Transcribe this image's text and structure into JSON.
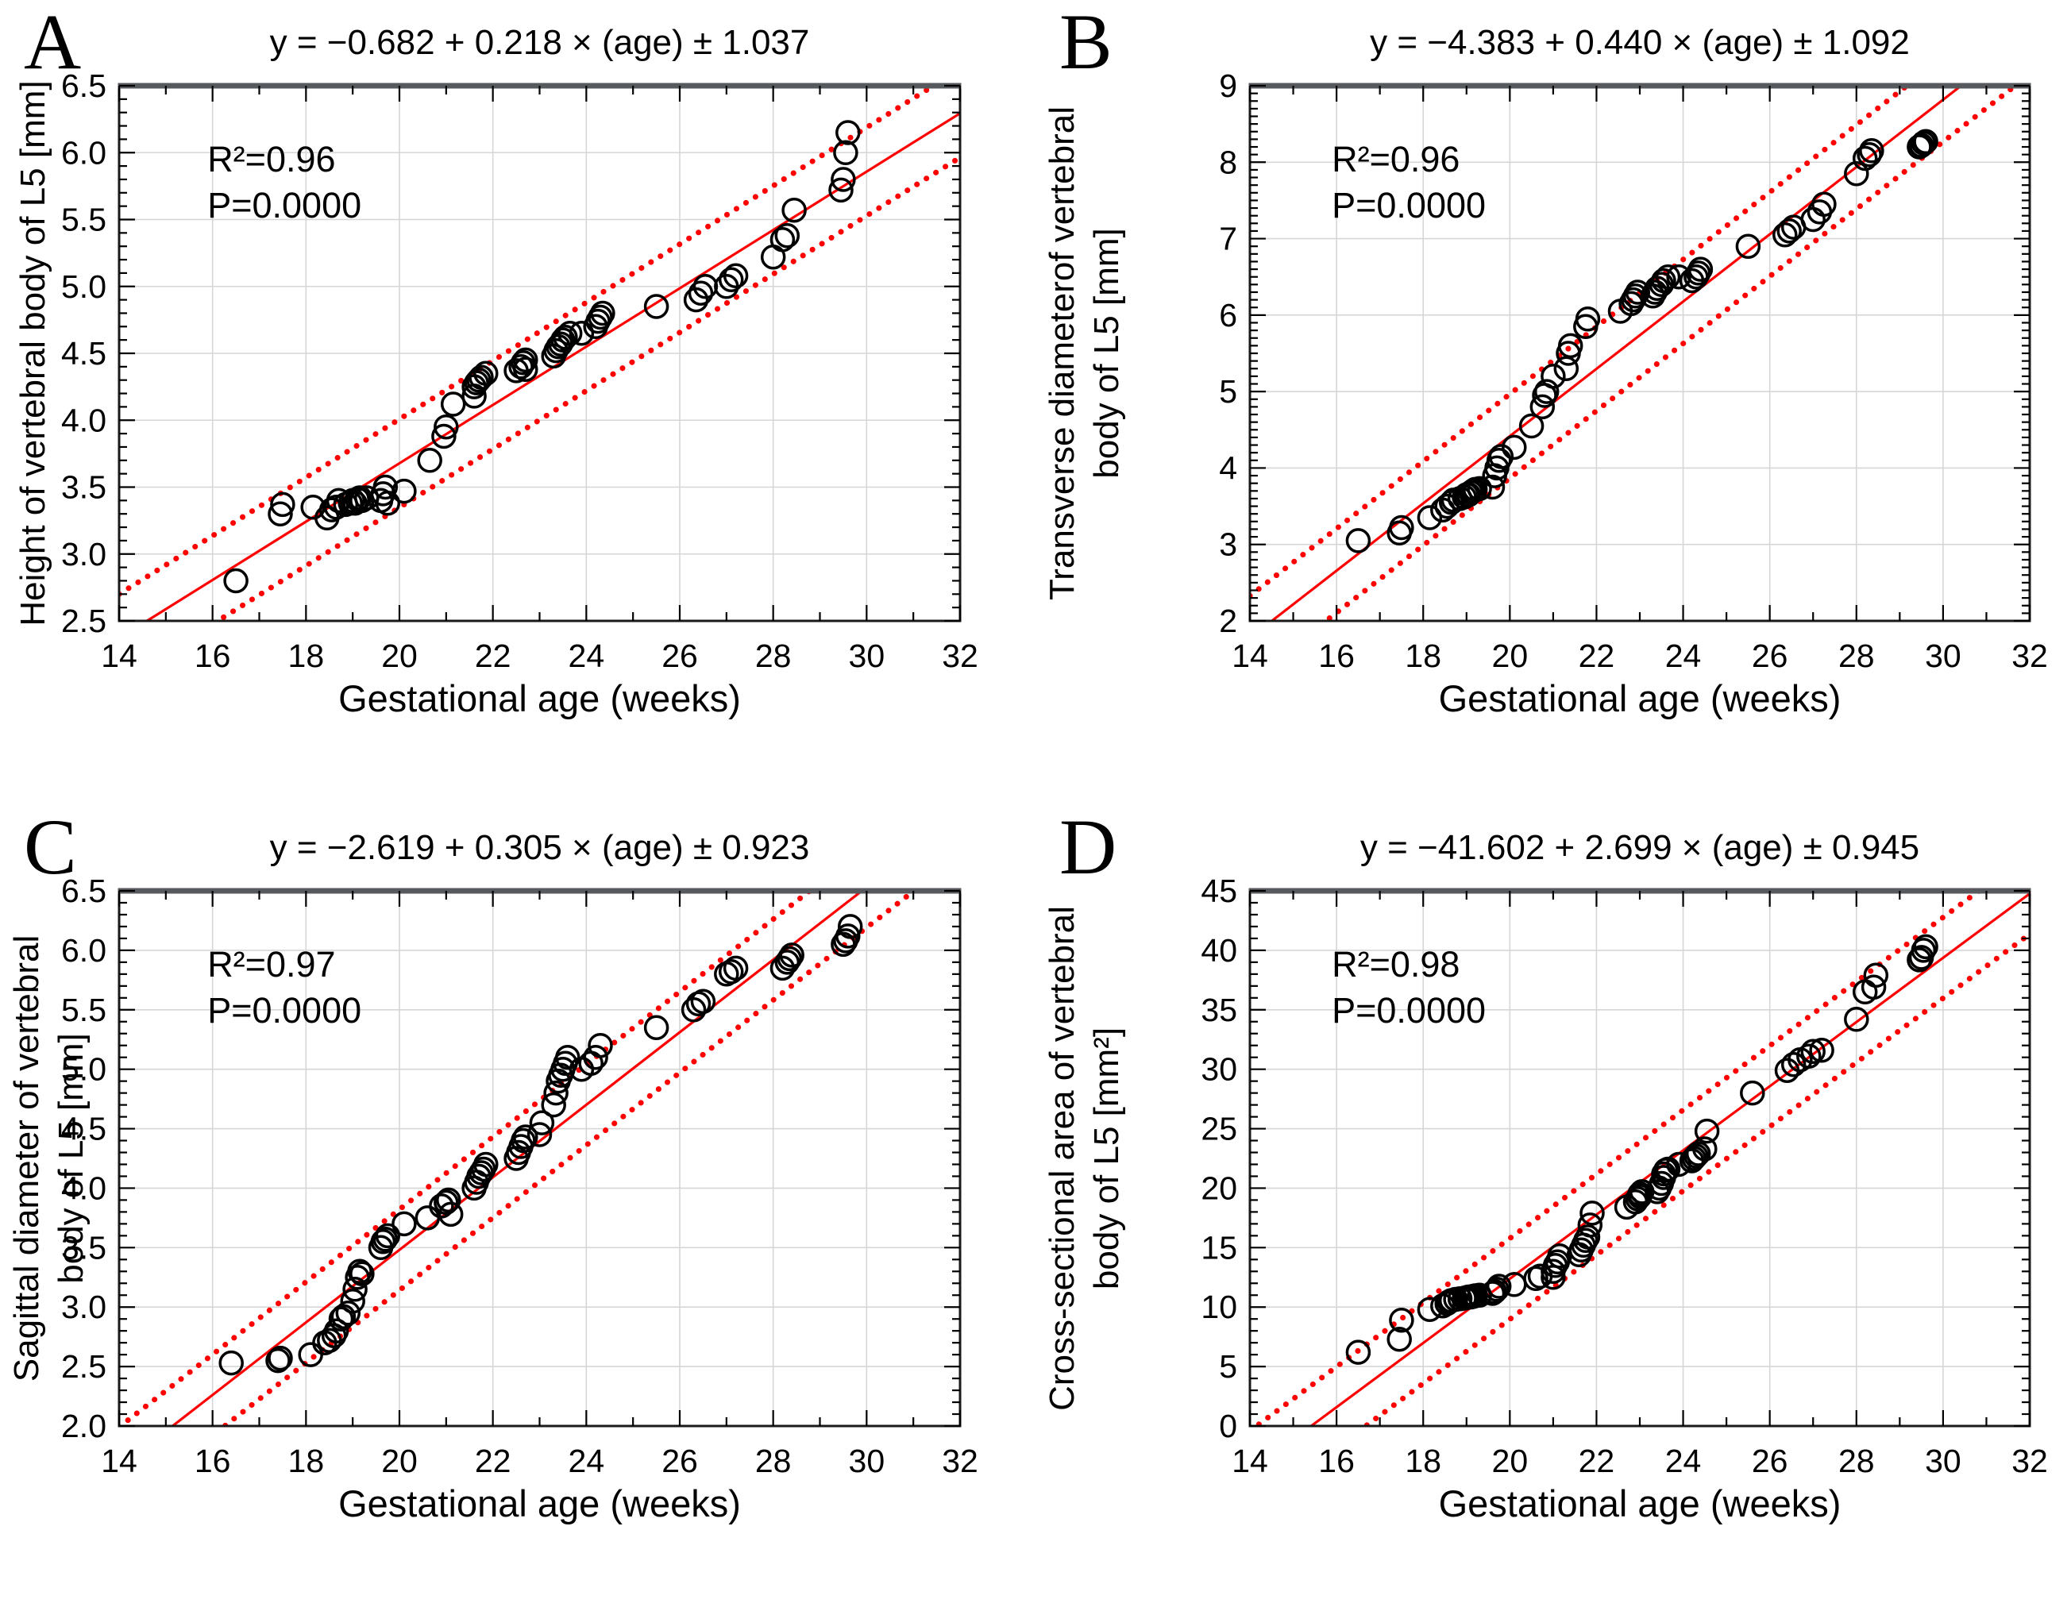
{
  "figure": {
    "background": "#ffffff",
    "shared_x_label": "Gestational age (weeks)",
    "colors": {
      "regression_line": "#ff0000",
      "confidence_band": "#ff0000",
      "marker_stroke": "#000000",
      "grid": "#d6d6d6",
      "frame": "#1a1a1a",
      "frame_top": "#56595e"
    }
  },
  "chart_data": [
    {
      "id": "A",
      "type": "scatter",
      "letter": "A",
      "title": "y = −0.682 + 0.218 × (age) ± 1.037",
      "annotations": {
        "r2": "R²=0.96",
        "p": "P=0.0000"
      },
      "xlabel": "Gestational age (weeks)",
      "ylabel_lines": [
        "Height of vertebral body of L5 [mm]"
      ],
      "xlim": [
        14,
        32
      ],
      "xtick_step": 2,
      "xminor_step": 1,
      "xtick_decimals": 0,
      "ylim": [
        2.5,
        6.5
      ],
      "ytick_step": 0.5,
      "yminor_step": 0.1,
      "ytick_decimals": 1,
      "grid": true,
      "legend": "none",
      "regression": {
        "intercept": -0.682,
        "slope": 0.218,
        "band_offset": 0.33
      },
      "layout": {
        "margin_left": 150,
        "margin_right": 95
      },
      "points": [
        [
          16.5,
          2.8
        ],
        [
          17.45,
          3.3
        ],
        [
          17.5,
          3.37
        ],
        [
          18.15,
          3.35
        ],
        [
          18.45,
          3.27
        ],
        [
          18.55,
          3.33
        ],
        [
          18.65,
          3.35
        ],
        [
          18.7,
          3.4
        ],
        [
          18.85,
          3.37
        ],
        [
          18.95,
          3.38
        ],
        [
          19.0,
          3.4
        ],
        [
          19.05,
          3.38
        ],
        [
          19.1,
          3.41
        ],
        [
          19.15,
          3.42
        ],
        [
          19.2,
          3.4
        ],
        [
          19.3,
          3.42
        ],
        [
          19.6,
          3.4
        ],
        [
          19.65,
          3.45
        ],
        [
          19.7,
          3.5
        ],
        [
          19.75,
          3.38
        ],
        [
          20.1,
          3.47
        ],
        [
          20.65,
          3.7
        ],
        [
          20.95,
          3.88
        ],
        [
          21.0,
          3.95
        ],
        [
          21.15,
          4.12
        ],
        [
          21.6,
          4.18
        ],
        [
          21.6,
          4.25
        ],
        [
          21.65,
          4.28
        ],
        [
          21.7,
          4.3
        ],
        [
          21.75,
          4.32
        ],
        [
          21.85,
          4.35
        ],
        [
          22.5,
          4.37
        ],
        [
          22.6,
          4.4
        ],
        [
          22.65,
          4.43
        ],
        [
          22.7,
          4.45
        ],
        [
          22.7,
          4.38
        ],
        [
          23.3,
          4.48
        ],
        [
          23.35,
          4.52
        ],
        [
          23.4,
          4.55
        ],
        [
          23.45,
          4.57
        ],
        [
          23.5,
          4.6
        ],
        [
          23.55,
          4.62
        ],
        [
          23.65,
          4.65
        ],
        [
          23.9,
          4.65
        ],
        [
          24.2,
          4.7
        ],
        [
          24.25,
          4.74
        ],
        [
          24.3,
          4.77
        ],
        [
          24.35,
          4.8
        ],
        [
          25.5,
          4.85
        ],
        [
          26.35,
          4.9
        ],
        [
          26.45,
          4.95
        ],
        [
          26.55,
          5.0
        ],
        [
          27.0,
          5.0
        ],
        [
          27.1,
          5.05
        ],
        [
          27.2,
          5.08
        ],
        [
          28.0,
          5.22
        ],
        [
          28.2,
          5.35
        ],
        [
          28.3,
          5.38
        ],
        [
          28.45,
          5.57
        ],
        [
          29.45,
          5.72
        ],
        [
          29.5,
          5.8
        ],
        [
          29.55,
          6.0
        ],
        [
          29.6,
          6.15
        ]
      ]
    },
    {
      "id": "B",
      "type": "scatter",
      "letter": "B",
      "title": "y = −4.383 + 0.440 × (age) ± 1.092",
      "annotations": {
        "r2": "R²=0.96",
        "p": "P=0.0000"
      },
      "xlabel": "Gestational age (weeks)",
      "ylabel_lines": [
        "Transverse diameterof vertebral",
        "body of L5 [mm]"
      ],
      "xlim": [
        14,
        32
      ],
      "xtick_step": 2,
      "xminor_step": 1,
      "xtick_decimals": 0,
      "ylim": [
        2,
        9
      ],
      "ytick_step": 1,
      "yminor_step": 0.1,
      "ytick_decimals": 0,
      "grid": true,
      "legend": "none",
      "regression": {
        "intercept": -4.383,
        "slope": 0.44,
        "band_offset": 0.55
      },
      "layout": {
        "margin_left": 270,
        "margin_right": 52
      },
      "points": [
        [
          16.5,
          3.05
        ],
        [
          17.45,
          3.15
        ],
        [
          17.5,
          3.22
        ],
        [
          18.15,
          3.35
        ],
        [
          18.45,
          3.45
        ],
        [
          18.55,
          3.5
        ],
        [
          18.65,
          3.55
        ],
        [
          18.7,
          3.58
        ],
        [
          18.85,
          3.6
        ],
        [
          18.95,
          3.62
        ],
        [
          19.0,
          3.65
        ],
        [
          19.05,
          3.65
        ],
        [
          19.1,
          3.68
        ],
        [
          19.15,
          3.7
        ],
        [
          19.2,
          3.72
        ],
        [
          19.3,
          3.73
        ],
        [
          19.6,
          3.75
        ],
        [
          19.65,
          3.9
        ],
        [
          19.7,
          4.0
        ],
        [
          19.75,
          4.1
        ],
        [
          19.8,
          4.15
        ],
        [
          20.1,
          4.27
        ],
        [
          20.5,
          4.55
        ],
        [
          20.75,
          4.8
        ],
        [
          20.8,
          4.95
        ],
        [
          20.85,
          5.0
        ],
        [
          21.0,
          5.2
        ],
        [
          21.3,
          5.3
        ],
        [
          21.35,
          5.5
        ],
        [
          21.4,
          5.6
        ],
        [
          21.75,
          5.85
        ],
        [
          21.8,
          5.95
        ],
        [
          22.55,
          6.05
        ],
        [
          22.8,
          6.15
        ],
        [
          22.85,
          6.2
        ],
        [
          22.9,
          6.25
        ],
        [
          22.95,
          6.3
        ],
        [
          23.3,
          6.25
        ],
        [
          23.35,
          6.3
        ],
        [
          23.4,
          6.35
        ],
        [
          23.5,
          6.4
        ],
        [
          23.55,
          6.45
        ],
        [
          23.65,
          6.5
        ],
        [
          23.9,
          6.5
        ],
        [
          24.2,
          6.45
        ],
        [
          24.3,
          6.5
        ],
        [
          24.35,
          6.55
        ],
        [
          24.4,
          6.6
        ],
        [
          25.5,
          6.9
        ],
        [
          26.35,
          7.05
        ],
        [
          26.45,
          7.1
        ],
        [
          26.55,
          7.15
        ],
        [
          27.0,
          7.25
        ],
        [
          27.15,
          7.35
        ],
        [
          27.25,
          7.45
        ],
        [
          28.0,
          7.85
        ],
        [
          28.2,
          8.05
        ],
        [
          28.3,
          8.1
        ],
        [
          28.35,
          8.15
        ],
        [
          29.45,
          8.2
        ],
        [
          29.5,
          8.22
        ],
        [
          29.55,
          8.25
        ],
        [
          29.6,
          8.27
        ]
      ]
    },
    {
      "id": "C",
      "type": "scatter",
      "letter": "C",
      "title": "y = −2.619 + 0.305 × (age) ± 0.923",
      "annotations": {
        "r2": "R²=0.97",
        "p": "P=0.0000"
      },
      "xlabel": "Gestational age (weeks)",
      "ylabel_lines": [
        "Sagittal diameter of vertebral",
        "body of L5 [mm]"
      ],
      "xlim": [
        14,
        32
      ],
      "xtick_step": 2,
      "xminor_step": 1,
      "xtick_decimals": 0,
      "ylim": [
        2.0,
        6.5
      ],
      "ytick_step": 0.5,
      "yminor_step": 0.1,
      "ytick_decimals": 1,
      "grid": true,
      "legend": "none",
      "regression": {
        "intercept": -2.619,
        "slope": 0.305,
        "band_offset": 0.34
      },
      "layout": {
        "margin_left": 150,
        "margin_right": 95
      },
      "points": [
        [
          16.4,
          2.53
        ],
        [
          17.4,
          2.55
        ],
        [
          17.45,
          2.57
        ],
        [
          18.1,
          2.6
        ],
        [
          18.4,
          2.7
        ],
        [
          18.5,
          2.72
        ],
        [
          18.6,
          2.76
        ],
        [
          18.65,
          2.8
        ],
        [
          18.75,
          2.9
        ],
        [
          18.8,
          2.92
        ],
        [
          18.9,
          2.95
        ],
        [
          19.0,
          3.05
        ],
        [
          19.05,
          3.15
        ],
        [
          19.1,
          3.25
        ],
        [
          19.15,
          3.3
        ],
        [
          19.2,
          3.28
        ],
        [
          19.6,
          3.5
        ],
        [
          19.65,
          3.55
        ],
        [
          19.7,
          3.57
        ],
        [
          19.75,
          3.6
        ],
        [
          20.1,
          3.7
        ],
        [
          20.6,
          3.75
        ],
        [
          20.9,
          3.85
        ],
        [
          21.0,
          3.88
        ],
        [
          21.05,
          3.9
        ],
        [
          21.1,
          3.78
        ],
        [
          21.6,
          4.0
        ],
        [
          21.65,
          4.05
        ],
        [
          21.7,
          4.1
        ],
        [
          21.75,
          4.13
        ],
        [
          21.8,
          4.16
        ],
        [
          21.85,
          4.2
        ],
        [
          22.5,
          4.25
        ],
        [
          22.55,
          4.3
        ],
        [
          22.6,
          4.35
        ],
        [
          22.65,
          4.4
        ],
        [
          22.7,
          4.43
        ],
        [
          23.0,
          4.45
        ],
        [
          23.05,
          4.55
        ],
        [
          23.3,
          4.7
        ],
        [
          23.35,
          4.8
        ],
        [
          23.4,
          4.9
        ],
        [
          23.45,
          4.95
        ],
        [
          23.5,
          5.0
        ],
        [
          23.55,
          5.05
        ],
        [
          23.6,
          5.1
        ],
        [
          23.9,
          5.0
        ],
        [
          24.1,
          5.05
        ],
        [
          24.2,
          5.1
        ],
        [
          24.3,
          5.2
        ],
        [
          25.5,
          5.35
        ],
        [
          26.3,
          5.5
        ],
        [
          26.4,
          5.55
        ],
        [
          26.5,
          5.57
        ],
        [
          27.0,
          5.8
        ],
        [
          27.1,
          5.82
        ],
        [
          27.2,
          5.85
        ],
        [
          28.2,
          5.85
        ],
        [
          28.3,
          5.9
        ],
        [
          28.35,
          5.93
        ],
        [
          28.4,
          5.96
        ],
        [
          29.5,
          6.05
        ],
        [
          29.55,
          6.08
        ],
        [
          29.6,
          6.12
        ],
        [
          29.65,
          6.2
        ]
      ]
    },
    {
      "id": "D",
      "type": "scatter",
      "letter": "D",
      "title": "y = −41.602 + 2.699 × (age) ± 0.945",
      "annotations": {
        "r2": "R²=0.98",
        "p": "P=0.0000"
      },
      "xlabel": "Gestational age (weeks)",
      "ylabel_lines": [
        "Cross-sectional area of vertebral",
        "body of L5 [mm²]"
      ],
      "xlim": [
        14,
        32
      ],
      "xtick_step": 2,
      "xminor_step": 1,
      "xtick_decimals": 0,
      "ylim": [
        0,
        45
      ],
      "ytick_step": 5,
      "yminor_step": 1,
      "ytick_decimals": 0,
      "grid": true,
      "legend": "none",
      "regression": {
        "intercept": -41.602,
        "slope": 2.699,
        "band_offset": 3.4
      },
      "layout": {
        "margin_left": 270,
        "margin_right": 52
      },
      "points": [
        [
          16.5,
          6.2
        ],
        [
          17.45,
          7.3
        ],
        [
          17.5,
          8.9
        ],
        [
          18.15,
          9.8
        ],
        [
          18.45,
          10.1
        ],
        [
          18.55,
          10.3
        ],
        [
          18.6,
          10.45
        ],
        [
          18.65,
          10.55
        ],
        [
          18.75,
          10.65
        ],
        [
          18.85,
          10.7
        ],
        [
          18.95,
          10.75
        ],
        [
          19.0,
          10.8
        ],
        [
          19.05,
          10.85
        ],
        [
          19.1,
          10.85
        ],
        [
          19.15,
          10.9
        ],
        [
          19.2,
          10.95
        ],
        [
          19.3,
          11.0
        ],
        [
          19.6,
          11.15
        ],
        [
          19.65,
          11.3
        ],
        [
          19.7,
          11.5
        ],
        [
          19.75,
          11.75
        ],
        [
          20.1,
          11.9
        ],
        [
          20.6,
          12.4
        ],
        [
          20.7,
          12.6
        ],
        [
          21.0,
          12.5
        ],
        [
          21.0,
          13.0
        ],
        [
          21.05,
          13.5
        ],
        [
          21.1,
          13.8
        ],
        [
          21.15,
          14.3
        ],
        [
          21.6,
          14.4
        ],
        [
          21.65,
          14.8
        ],
        [
          21.7,
          15.2
        ],
        [
          21.75,
          15.6
        ],
        [
          21.8,
          15.9
        ],
        [
          21.85,
          16.9
        ],
        [
          21.9,
          17.9
        ],
        [
          22.7,
          18.4
        ],
        [
          22.9,
          18.85
        ],
        [
          22.95,
          19.1
        ],
        [
          23.0,
          19.3
        ],
        [
          23.0,
          19.5
        ],
        [
          23.05,
          19.7
        ],
        [
          23.4,
          19.7
        ],
        [
          23.45,
          20.0
        ],
        [
          23.5,
          20.4
        ],
        [
          23.55,
          20.9
        ],
        [
          23.55,
          21.2
        ],
        [
          23.6,
          21.5
        ],
        [
          23.65,
          21.6
        ],
        [
          23.9,
          22.0
        ],
        [
          24.2,
          22.3
        ],
        [
          24.25,
          22.5
        ],
        [
          24.3,
          22.7
        ],
        [
          24.35,
          22.9
        ],
        [
          24.5,
          23.3
        ],
        [
          24.55,
          24.8
        ],
        [
          25.6,
          28.0
        ],
        [
          26.4,
          29.9
        ],
        [
          26.55,
          30.4
        ],
        [
          26.7,
          30.8
        ],
        [
          26.9,
          31.1
        ],
        [
          27.0,
          31.5
        ],
        [
          27.2,
          31.6
        ],
        [
          28.0,
          34.2
        ],
        [
          28.2,
          36.5
        ],
        [
          28.4,
          36.9
        ],
        [
          28.45,
          37.9
        ],
        [
          29.45,
          39.2
        ],
        [
          29.5,
          39.4
        ],
        [
          29.55,
          40.0
        ],
        [
          29.6,
          40.3
        ]
      ]
    }
  ]
}
